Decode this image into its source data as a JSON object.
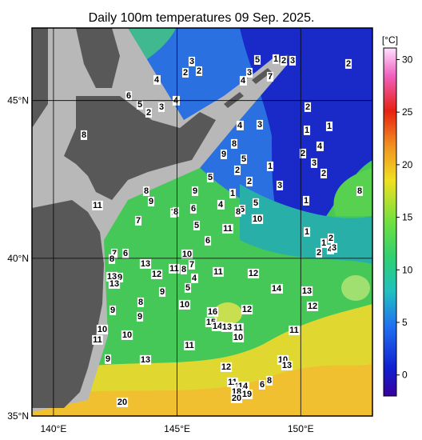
{
  "title": "Daily 100m temperatures 09 Sep. 2025.",
  "map": {
    "xlim": [
      139.13,
      152.9
    ],
    "ylim": [
      35,
      47.3
    ],
    "xticks": [
      {
        "value": 140,
        "label": "140°E"
      },
      {
        "value": 145,
        "label": "145°E"
      },
      {
        "value": 150,
        "label": "150°E"
      }
    ],
    "yticks": [
      {
        "value": 35,
        "label": "35°N"
      },
      {
        "value": 40,
        "label": "40°N"
      },
      {
        "value": 45,
        "label": "45°N"
      }
    ]
  },
  "colorbar": {
    "label": "[°C]",
    "lim": [
      -2,
      31.1
    ],
    "ticks": [
      0,
      5,
      10,
      15,
      20,
      25,
      30
    ]
  },
  "contour_labels": [
    3,
    2,
    2,
    4,
    5,
    1,
    2,
    3,
    3,
    4,
    7,
    2,
    6,
    5,
    2,
    3,
    4,
    2,
    4,
    3,
    1,
    1,
    8,
    8,
    9,
    4,
    2,
    3,
    2,
    5,
    1,
    2,
    5,
    2,
    3,
    8,
    9,
    1,
    9,
    8,
    1,
    11,
    4,
    5,
    6,
    5,
    8,
    7,
    8,
    7,
    10,
    5,
    11,
    1,
    2,
    6,
    1,
    2,
    4,
    3,
    7,
    6,
    8,
    10,
    13,
    7,
    11,
    8,
    12,
    11,
    12,
    4,
    13,
    9,
    13,
    5,
    9,
    14,
    13,
    8,
    10,
    12,
    9,
    16,
    12,
    9,
    15,
    14,
    13,
    11,
    10,
    10,
    10,
    11,
    11,
    11,
    13,
    9,
    10,
    13,
    12,
    8,
    6,
    11,
    17,
    14,
    18,
    20,
    19,
    20
  ]
}
